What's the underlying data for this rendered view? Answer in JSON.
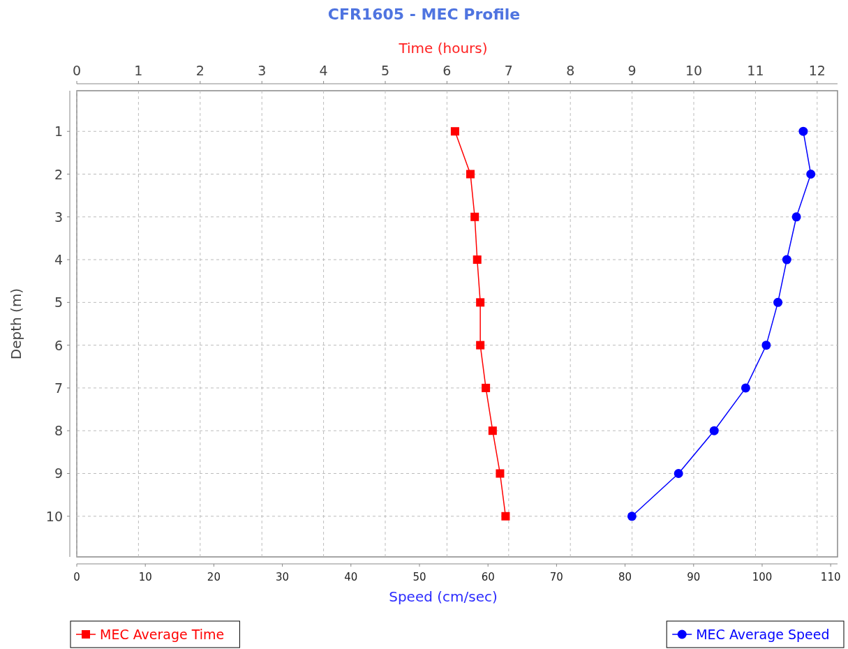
{
  "chart_data": {
    "type": "line",
    "title": "CFR1605 - MEC Profile",
    "xlabel": "Speed (cm/sec)",
    "x2label": "Time (hours)",
    "ylabel": "Depth (m)",
    "xlim": [
      0,
      111
    ],
    "xticks": [
      0,
      10,
      20,
      30,
      40,
      50,
      60,
      70,
      80,
      90,
      100,
      110
    ],
    "x2lim": [
      0,
      12.33
    ],
    "x2ticks": [
      0,
      1,
      2,
      3,
      4,
      5,
      6,
      7,
      8,
      9,
      10,
      11,
      12
    ],
    "ylim": [
      10.95,
      0.05
    ],
    "yticks": [
      1,
      2,
      3,
      4,
      5,
      6,
      7,
      8,
      9,
      10
    ],
    "grid": true,
    "legend": "bottom",
    "line_style": "solid",
    "series": [
      {
        "name": "MEC Average Time",
        "color": "#ff0000",
        "axis": "x2",
        "marker": "square",
        "x": [
          6.13,
          6.38,
          6.45,
          6.49,
          6.54,
          6.54,
          6.63,
          6.74,
          6.86,
          6.95
        ],
        "values": [
          1,
          2,
          3,
          4,
          5,
          6,
          7,
          8,
          9,
          10
        ]
      },
      {
        "name": "MEC Average Speed",
        "color": "#0000ff",
        "marker": "circle",
        "x": [
          106.0,
          107.1,
          105.0,
          103.6,
          102.3,
          100.6,
          97.6,
          93.0,
          87.8,
          81.0
        ],
        "values": [
          1,
          2,
          3,
          4,
          5,
          6,
          7,
          8,
          9,
          10
        ]
      }
    ]
  }
}
